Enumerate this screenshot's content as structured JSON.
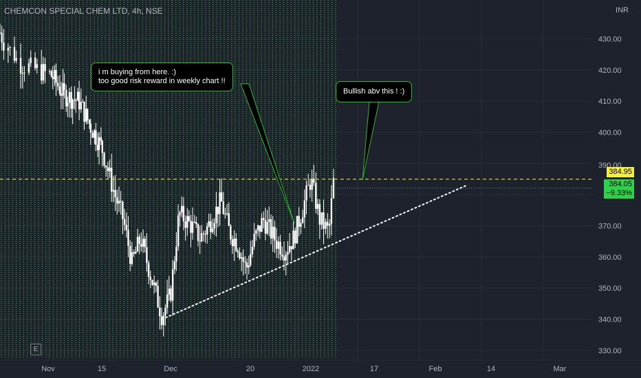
{
  "header": {
    "title": "CHEMCON SPECIAL CHEM LTD, 4h, NSE",
    "currency": "INR"
  },
  "callouts": {
    "buy_note_line1": "i m buying from here. :)",
    "buy_note_line2": "too good risk reward in weekly chart !!",
    "bullish_note": "Bullish abv this ! :)"
  },
  "badges": {
    "e_marker": "E"
  },
  "price_tags": {
    "line_level": "384.95",
    "last_price": "384.05",
    "last_change": "−9.33%"
  },
  "colors": {
    "background": "#1e222d",
    "grid_green": "#3ad63a",
    "candle": "#ffffff",
    "level_line": "#e8e020",
    "callout_border": "#2eb82e",
    "last_price_bg": "#2ad34a",
    "level_tag_bg": "#f5ef3b"
  },
  "chart_data": {
    "type": "candlestick",
    "title": "CHEMCON SPECIAL CHEM LTD, 4h, NSE",
    "ylabel": "INR",
    "ylim": [
      326,
      442
    ],
    "y_ticks": [
      330,
      340,
      350,
      360,
      370,
      380,
      390,
      400,
      410,
      420,
      430
    ],
    "y_tick_labels": [
      "330.00",
      "340.00",
      "350.00",
      "360.00",
      "370.00",
      "380.00",
      "390.00",
      "400.00",
      "410.00",
      "420.00",
      "430.00"
    ],
    "x_tick_labels": [
      "Nov",
      "15",
      "Dec",
      "20",
      "2022",
      "17",
      "Feb",
      "14",
      "Mar"
    ],
    "grid": true,
    "horizontal_level": 384.95,
    "last_price": 384.05,
    "change_percent": -9.33,
    "trendline": {
      "from": [
        "2021-11-29",
        340
      ],
      "to": [
        "2022-02-06",
        384
      ]
    },
    "price_path": [
      [
        "2021-10-25",
        432
      ],
      [
        "2021-10-28",
        422
      ],
      [
        "2021-11-02",
        418
      ],
      [
        "2021-11-05",
        412
      ],
      [
        "2021-11-09",
        410
      ],
      [
        "2021-11-12",
        402
      ],
      [
        "2021-11-15",
        395
      ],
      [
        "2021-11-18",
        380
      ],
      [
        "2021-11-20",
        372
      ],
      [
        "2021-11-22",
        358
      ],
      [
        "2021-11-24",
        366
      ],
      [
        "2021-11-26",
        356
      ],
      [
        "2021-11-29",
        341
      ],
      [
        "2021-12-01",
        348
      ],
      [
        "2021-12-03",
        374
      ],
      [
        "2021-12-06",
        370
      ],
      [
        "2021-12-08",
        366
      ],
      [
        "2021-12-10",
        370
      ],
      [
        "2021-12-13",
        378
      ],
      [
        "2021-12-15",
        368
      ],
      [
        "2021-12-17",
        364
      ],
      [
        "2021-12-19",
        356
      ],
      [
        "2021-12-21",
        366
      ],
      [
        "2021-12-23",
        372
      ],
      [
        "2021-12-26",
        365
      ],
      [
        "2021-12-28",
        362
      ],
      [
        "2021-12-30",
        366
      ],
      [
        "2022-01-01",
        375
      ],
      [
        "2022-01-03",
        385
      ],
      [
        "2022-01-05",
        372
      ],
      [
        "2022-01-07",
        368
      ],
      [
        "2022-01-08",
        384
      ]
    ]
  }
}
